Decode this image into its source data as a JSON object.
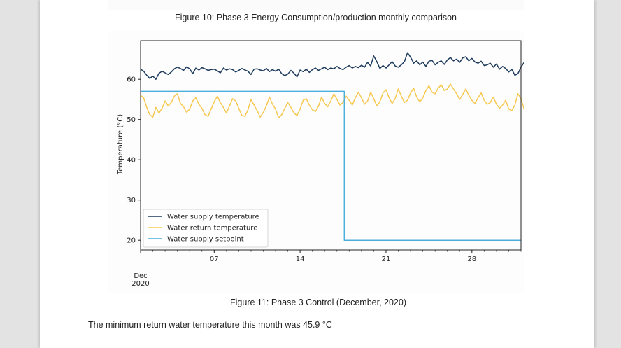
{
  "document": {
    "top_caption": "Figure 10: Phase 3 Energy Consumption/production monthly comparison",
    "figure_caption": "Figure 11: Phase 3 Control (December, 2020)",
    "body_text": "The minimum return water temperature this month was 45.9 °C"
  },
  "chart_data": {
    "type": "line",
    "title": "",
    "xlabel": "",
    "ylabel": "Temperature (°C)",
    "x_unit": "days since 2020-12-01 00:00",
    "xlim": [
      0,
      31
    ],
    "ylim": [
      17.6,
      69.6
    ],
    "grid": false,
    "x_ticks": [
      {
        "value": 6,
        "label": "07"
      },
      {
        "value": 13,
        "label": "14"
      },
      {
        "value": 20,
        "label": "21"
      },
      {
        "value": 27,
        "label": "28"
      }
    ],
    "x_minor_tick_step_days": 1,
    "x_offset_label": [
      "Dec",
      "2020"
    ],
    "y_ticks": [
      20,
      30,
      40,
      50,
      60
    ],
    "legend": {
      "placement": "lower-left",
      "entries": [
        "Water supply temperature",
        "Water return temperature",
        "Water supply setpoint"
      ]
    },
    "colors": {
      "supply": "#1d3a5c",
      "return": "#f6c850",
      "setpoint": "#4aafdd",
      "axis": "#222222"
    },
    "series": [
      {
        "name": "Water supply temperature",
        "step_days": 0.25,
        "values": [
          62.5,
          62.0,
          61.0,
          60.2,
          60.8,
          60.0,
          61.5,
          62.0,
          61.6,
          61.2,
          61.8,
          62.6,
          63.0,
          62.7,
          62.2,
          63.1,
          62.6,
          61.4,
          62.8,
          62.3,
          62.9,
          62.6,
          62.2,
          62.4,
          62.5,
          62.1,
          61.6,
          62.8,
          62.3,
          62.6,
          62.4,
          61.8,
          62.2,
          62.7,
          62.3,
          62.0,
          61.2,
          62.5,
          62.6,
          62.3,
          62.1,
          62.7,
          61.9,
          62.4,
          62.0,
          62.5,
          61.4,
          60.9,
          61.3,
          62.2,
          61.5,
          60.6,
          62.3,
          61.9,
          62.5,
          61.7,
          62.4,
          62.8,
          62.2,
          62.6,
          63.0,
          62.4,
          62.8,
          62.6,
          63.2,
          62.7,
          62.4,
          63.0,
          63.4,
          62.8,
          63.2,
          62.9,
          63.5,
          63.0,
          64.2,
          63.3,
          65.8,
          64.4,
          62.7,
          63.4,
          62.8,
          63.6,
          64.4,
          63.3,
          63.0,
          63.6,
          64.4,
          66.6,
          65.5,
          64.0,
          64.6,
          63.6,
          64.3,
          63.2,
          64.5,
          64.7,
          63.6,
          64.2,
          64.6,
          63.7,
          64.8,
          65.4,
          64.6,
          65.0,
          64.2,
          65.3,
          65.6,
          64.6,
          65.2,
          64.3,
          64.0,
          64.5,
          63.4,
          63.6,
          64.0,
          63.0,
          63.8,
          62.5,
          63.2,
          62.7,
          61.8,
          62.5,
          61.0,
          61.4,
          63.0,
          64.2,
          62.6,
          61.5,
          62.7,
          63.2,
          62.6,
          63.5,
          64.4,
          63.0,
          61.0,
          60.8,
          62.4,
          64.6,
          62.5,
          63.3,
          62.8,
          63.6,
          64.8,
          62.0,
          59.0,
          54.0,
          60.0,
          63.8,
          64.3,
          63.0,
          62.6,
          62.2,
          63.4,
          62.8,
          63.1,
          62.5,
          62.9,
          63.0
        ]
      },
      {
        "name": "Water return temperature",
        "step_days": 0.25,
        "values": [
          56.0,
          55.4,
          53.0,
          51.2,
          50.6,
          53.0,
          51.6,
          52.8,
          54.6,
          53.4,
          54.2,
          55.8,
          56.4,
          54.0,
          53.2,
          51.8,
          52.6,
          54.6,
          55.4,
          53.8,
          52.8,
          51.2,
          50.8,
          52.6,
          54.4,
          55.8,
          54.2,
          53.0,
          51.6,
          53.4,
          55.2,
          54.6,
          52.8,
          51.0,
          50.8,
          52.4,
          55.0,
          53.6,
          52.2,
          50.6,
          51.8,
          53.4,
          55.6,
          53.8,
          52.6,
          50.4,
          51.2,
          52.8,
          54.2,
          53.0,
          51.6,
          51.0,
          52.6,
          54.8,
          55.2,
          53.6,
          52.4,
          52.0,
          53.4,
          55.6,
          54.0,
          53.2,
          54.6,
          56.4,
          55.0,
          53.6,
          54.2,
          55.8,
          54.8,
          53.6,
          55.4,
          56.8,
          55.4,
          53.8,
          54.6,
          56.8,
          55.2,
          53.4,
          54.4,
          56.6,
          57.4,
          55.4,
          54.0,
          55.2,
          57.6,
          55.8,
          54.2,
          54.8,
          56.6,
          57.8,
          55.6,
          54.4,
          55.4,
          57.2,
          58.4,
          56.8,
          56.4,
          57.8,
          58.6,
          57.2,
          57.6,
          58.8,
          57.6,
          56.4,
          55.0,
          56.2,
          57.6,
          56.0,
          54.8,
          54.0,
          55.4,
          56.6,
          54.8,
          53.8,
          54.2,
          55.6,
          53.8,
          52.8,
          53.6,
          54.8,
          52.6,
          52.2,
          53.6,
          56.4,
          55.2,
          52.6,
          51.6,
          52.8,
          55.0,
          53.4,
          52.2,
          53.6,
          56.6,
          55.2,
          52.6,
          51.4,
          53.2,
          56.4,
          55.0,
          52.8,
          51.2,
          53.8,
          56.6,
          54.2,
          50.4,
          46.6,
          53.0,
          56.0,
          55.0,
          53.2,
          52.4,
          53.8,
          54.4,
          52.6,
          53.0,
          54.6
        ]
      },
      {
        "name": "Water supply setpoint",
        "type": "step",
        "points": [
          [
            0,
            57.0
          ],
          [
            16.6,
            57.0
          ],
          [
            16.6,
            20.0
          ],
          [
            31,
            20.0
          ]
        ]
      }
    ]
  }
}
